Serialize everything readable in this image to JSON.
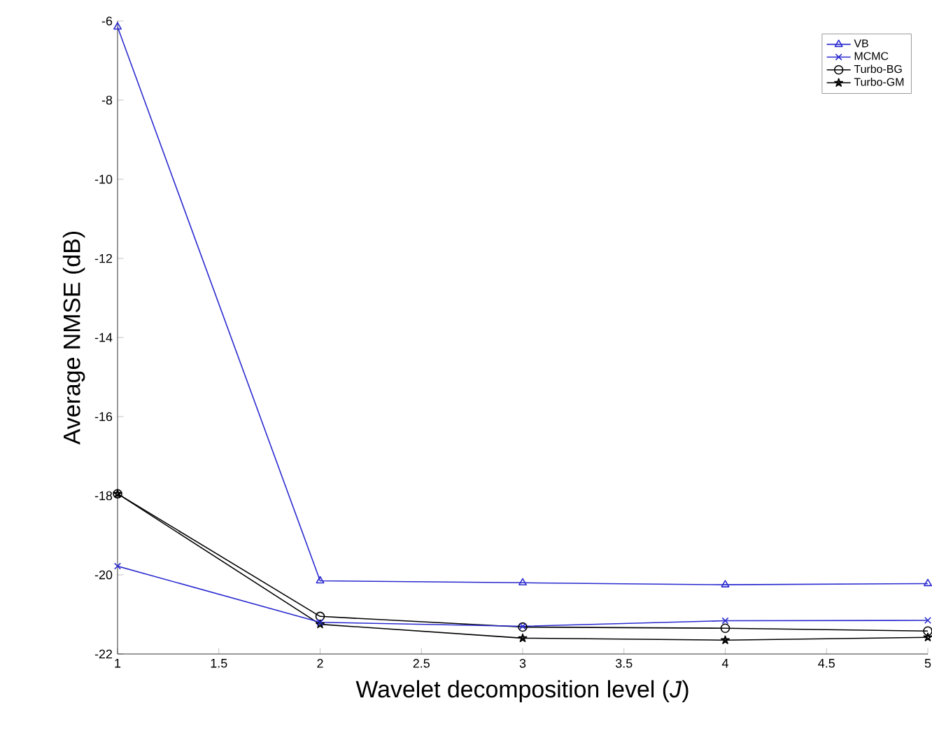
{
  "chart_data": {
    "type": "line",
    "xlabel": "Wavelet decomposition level (*J*)",
    "ylabel": "Average NMSE (dB)",
    "x": [
      1,
      2,
      3,
      4,
      5
    ],
    "series": [
      {
        "name": "VB",
        "color": "#2a2ad0",
        "marker": "triangle",
        "values": [
          -6.15,
          -20.15,
          -20.2,
          -20.25,
          -20.22
        ]
      },
      {
        "name": "MCMC",
        "color": "#2a2ad0",
        "marker": "cross",
        "values": [
          -19.78,
          -21.2,
          -21.3,
          -21.16,
          -21.15
        ]
      },
      {
        "name": "Turbo-BG",
        "color": "#000000",
        "marker": "circle",
        "values": [
          -17.95,
          -21.05,
          -21.32,
          -21.35,
          -21.42
        ]
      },
      {
        "name": "Turbo-GM",
        "color": "#000000",
        "marker": "star",
        "values": [
          -17.95,
          -21.25,
          -21.6,
          -21.65,
          -21.58
        ]
      }
    ],
    "xlim": [
      1,
      5
    ],
    "ylim": [
      -22,
      -6
    ],
    "xticks": [
      1,
      1.5,
      2,
      2.5,
      3,
      3.5,
      4,
      4.5,
      5
    ],
    "yticks": [
      -22,
      -20,
      -18,
      -16,
      -14,
      -12,
      -10,
      -8,
      -6
    ],
    "grid": false,
    "legend": "top right",
    "line_style": "solid"
  }
}
